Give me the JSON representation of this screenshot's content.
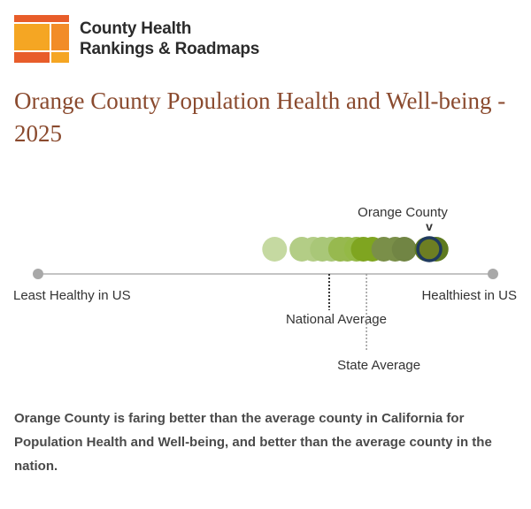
{
  "header": {
    "brand_line1": "County Health",
    "brand_line2": "Rankings & Roadmaps",
    "title": "Orange County Population Health and Well-being - 2025"
  },
  "colors": {
    "title": "#8a4a2e",
    "axis": "#b0b0b0",
    "highlight_stroke": "#1f3a5f",
    "logo": [
      "#f5a623",
      "#e85d2a",
      "#f28c28"
    ]
  },
  "chart_data": {
    "type": "scatter",
    "title": "Orange County Population Health and Well-being - 2025",
    "axis": {
      "min": 0,
      "max": 100,
      "left_label": "Least Healthy in US",
      "right_label": "Healthiest in US"
    },
    "counties": [
      {
        "value": 52.0,
        "color": "#c5d9a1"
      },
      {
        "value": 58.0,
        "color": "#b3cd86"
      },
      {
        "value": 60.5,
        "color": "#b3cd86"
      },
      {
        "value": 62.5,
        "color": "#a9c778"
      },
      {
        "value": 64.5,
        "color": "#a9c778"
      },
      {
        "value": 66.5,
        "color": "#97b94f"
      },
      {
        "value": 68.0,
        "color": "#97b94f"
      },
      {
        "value": 70.0,
        "color": "#94b946"
      },
      {
        "value": 71.5,
        "color": "#7fa520"
      },
      {
        "value": 73.5,
        "color": "#7fa520"
      },
      {
        "value": 76.0,
        "color": "#7a8f49"
      },
      {
        "value": 78.5,
        "color": "#7a8f49"
      },
      {
        "value": 80.5,
        "color": "#718544"
      },
      {
        "value": 85.5,
        "color": "#5e7a1f"
      },
      {
        "value": 87.5,
        "color": "#5e7a1f"
      }
    ],
    "highlight": {
      "name": "Orange County",
      "value": 86.0,
      "color": "#6d7e22",
      "marker": "v"
    },
    "national_average": {
      "label": "National Average",
      "value": 64.0
    },
    "state_average": {
      "label": "State Average",
      "value": 72.2
    }
  },
  "description": "Orange County is faring better than the average county in California for Population Health and Well-being, and better than the average county in the nation."
}
